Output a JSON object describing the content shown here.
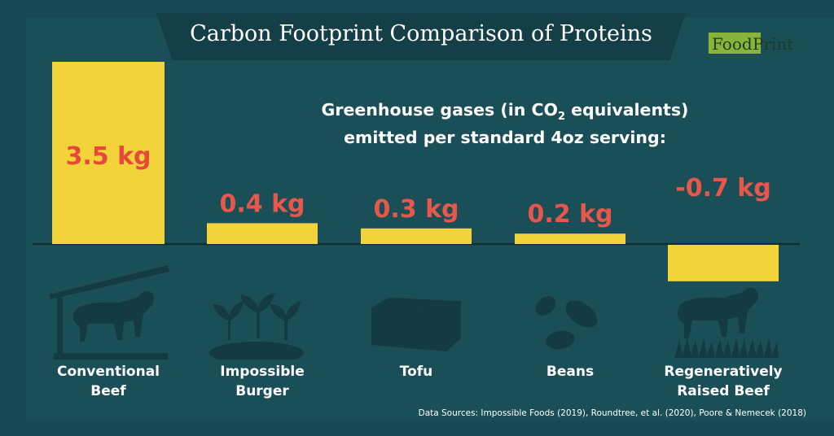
{
  "header": {
    "title": "Carbon Footprint Comparison of Proteins",
    "logo_text_food": "Food",
    "logo_text_print": "Print"
  },
  "subtitle": {
    "line1_pre": "Greenhouse gases (in CO",
    "line1_sub": "2",
    "line1_post": " equivalents)",
    "line2": "emitted per standard 4oz serving:"
  },
  "footer": {
    "sources": "Data Sources:  Impossible Foods (2019), Roundtree, et al. (2020), Poore & Nemecek (2018)"
  },
  "icons": [
    "cow-shelter-icon",
    "seedlings-icon",
    "tofu-block-icon",
    "beans-icon",
    "cow-grass-icon"
  ],
  "colors": {
    "background": "#1b4f58",
    "bar": "#f2d43a",
    "value_label_on_bar": "#e8473b",
    "value_label": "#e8574a",
    "icon": "#143b43",
    "text": "#ffffff"
  },
  "chart_data": {
    "type": "bar",
    "unit": "kg",
    "categories": [
      "Conventional Beef",
      "Impossible Burger",
      "Tofu",
      "Beans",
      "Regeneratively Raised Beef"
    ],
    "category_lines": [
      [
        "Conventional",
        "Beef"
      ],
      [
        "Impossible",
        "Burger"
      ],
      [
        "Tofu"
      ],
      [
        "Beans"
      ],
      [
        "Regeneratively",
        "Raised Beef"
      ]
    ],
    "values": [
      3.5,
      0.4,
      0.3,
      0.2,
      -0.7
    ],
    "value_labels": [
      "3.5 kg",
      "0.4 kg",
      "0.3 kg",
      "0.2 kg",
      "-0.7 kg"
    ],
    "baseline": 0,
    "grid": false,
    "legend": "none"
  }
}
